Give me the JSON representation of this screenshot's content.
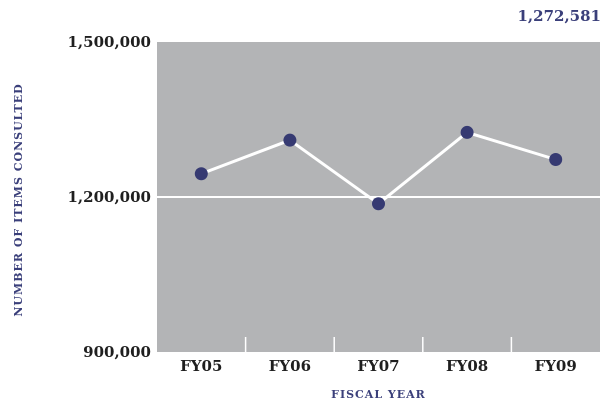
{
  "chart_data": {
    "type": "line",
    "title": "",
    "xlabel": "FISCAL YEAR",
    "ylabel": "NUMBER OF ITEMS CONSULTED",
    "categories": [
      "FY05",
      "FY06",
      "FY07",
      "FY08",
      "FY09"
    ],
    "series": [
      {
        "values": [
          1245000,
          1310000,
          1187000,
          1325000,
          1272581
        ]
      }
    ],
    "ylim": [
      900000,
      1500000
    ],
    "yticks": [
      "1,500,000",
      "1,200,000",
      "900,000"
    ],
    "ytick_values": [
      1500000,
      1200000,
      900000
    ],
    "annotation": "1,272,581",
    "grid": "horizontal line at 1,200,000",
    "colors": {
      "plot_background": "#b3b4b6",
      "line": "#ffffff",
      "marker": "#363a72",
      "label_accent": "#3a3f7a"
    }
  }
}
